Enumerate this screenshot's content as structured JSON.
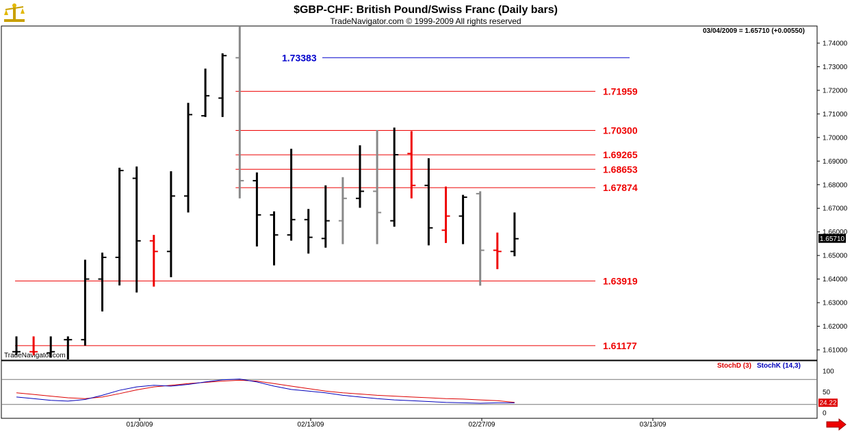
{
  "header": {
    "title": "$GBP-CHF:  British Pound/Swiss Franc  (Daily bars)",
    "copyright": "TradeNavigator.com © 1999-2009 All rights reserved",
    "readout": "03/04/2009 = 1.65710 (+0.00550)",
    "watermark": "TradeNavigator.com",
    "logo_icon": "scales-icon"
  },
  "chart_data": [
    {
      "type": "ohlc",
      "title": "$GBP-CHF:  British Pound/Swiss Franc  (Daily bars)",
      "ylim": [
        1.605,
        1.748
      ],
      "y_ticks": [
        "1.74000",
        "1.73000",
        "1.72000",
        "1.71000",
        "1.70000",
        "1.69000",
        "1.68000",
        "1.67000",
        "1.66000",
        "1.65000",
        "1.64000",
        "1.63000",
        "1.62000",
        "1.61000"
      ],
      "x_ticks": [
        "01/30/09",
        "02/13/09",
        "02/27/09",
        "03/13/09"
      ],
      "last_price_label": "1.65710",
      "bars": [
        {
          "h": 1.6157,
          "l": 1.6077,
          "o": 1.6092,
          "c": 1.6092,
          "color": "black"
        },
        {
          "h": 1.6157,
          "l": 1.6077,
          "o": 1.6092,
          "c": 1.6092,
          "color": "red"
        },
        {
          "h": 1.6157,
          "l": 1.6067,
          "o": 1.6087,
          "c": 1.6092,
          "color": "black"
        },
        {
          "h": 1.6157,
          "l": 1.6057,
          "o": 1.6143,
          "c": 1.6143,
          "color": "black"
        },
        {
          "h": 1.6482,
          "l": 1.6118,
          "o": 1.6143,
          "c": 1.64,
          "color": "black"
        },
        {
          "h": 1.6512,
          "l": 1.6263,
          "o": 1.64,
          "c": 1.6492,
          "color": "black"
        },
        {
          "h": 1.6872,
          "l": 1.6373,
          "o": 1.6492,
          "c": 1.686,
          "color": "black"
        },
        {
          "h": 1.6877,
          "l": 1.6343,
          "o": 1.6827,
          "c": 1.6562,
          "color": "black"
        },
        {
          "h": 1.6587,
          "l": 1.6368,
          "o": 1.6562,
          "c": 1.6517,
          "color": "red"
        },
        {
          "h": 1.6857,
          "l": 1.6408,
          "o": 1.6517,
          "c": 1.6752,
          "color": "black"
        },
        {
          "h": 1.7147,
          "l": 1.6682,
          "o": 1.6752,
          "c": 1.7097,
          "color": "black"
        },
        {
          "h": 1.7292,
          "l": 1.7087,
          "o": 1.7092,
          "c": 1.7177,
          "color": "black"
        },
        {
          "h": 1.7357,
          "l": 1.7087,
          "o": 1.7167,
          "c": 1.7347,
          "color": "black"
        },
        {
          "h": 1.7478,
          "l": 1.6742,
          "o": 1.7338,
          "c": 1.6817,
          "color": "gray"
        },
        {
          "h": 1.6852,
          "l": 1.6538,
          "o": 1.6817,
          "c": 1.6672,
          "color": "black"
        },
        {
          "h": 1.6687,
          "l": 1.6458,
          "o": 1.6672,
          "c": 1.6587,
          "color": "black"
        },
        {
          "h": 1.6952,
          "l": 1.6563,
          "o": 1.6587,
          "c": 1.6652,
          "color": "black"
        },
        {
          "h": 1.6697,
          "l": 1.6508,
          "o": 1.6652,
          "c": 1.6577,
          "color": "black"
        },
        {
          "h": 1.6797,
          "l": 1.6533,
          "o": 1.6572,
          "c": 1.6647,
          "color": "black"
        },
        {
          "h": 1.6832,
          "l": 1.6548,
          "o": 1.6647,
          "c": 1.6742,
          "color": "gray"
        },
        {
          "h": 1.6967,
          "l": 1.6702,
          "o": 1.6742,
          "c": 1.6772,
          "color": "black"
        },
        {
          "h": 1.7032,
          "l": 1.6548,
          "o": 1.6772,
          "c": 1.6682,
          "color": "gray"
        },
        {
          "h": 1.7042,
          "l": 1.6622,
          "o": 1.6647,
          "c": 1.6927,
          "color": "black"
        },
        {
          "h": 1.7027,
          "l": 1.6742,
          "o": 1.6932,
          "c": 1.6797,
          "color": "red"
        },
        {
          "h": 1.6912,
          "l": 1.6543,
          "o": 1.6797,
          "c": 1.6617,
          "color": "black"
        },
        {
          "h": 1.6792,
          "l": 1.6553,
          "o": 1.6607,
          "c": 1.6667,
          "color": "red"
        },
        {
          "h": 1.6757,
          "l": 1.6548,
          "o": 1.6667,
          "c": 1.6747,
          "color": "black"
        },
        {
          "h": 1.6772,
          "l": 1.6372,
          "o": 1.6762,
          "c": 1.6522,
          "color": "gray"
        },
        {
          "h": 1.6597,
          "l": 1.6442,
          "o": 1.6522,
          "c": 1.6517,
          "color": "red"
        },
        {
          "h": 1.6682,
          "l": 1.6497,
          "o": 1.6517,
          "c": 1.6571,
          "color": "black"
        }
      ],
      "levels": [
        {
          "value": 1.73383,
          "label": "1.73383",
          "color": "#0000cc",
          "x_start_bar": 18,
          "x_end_bar": 36
        },
        {
          "value": 1.71959,
          "label": "1.71959",
          "color": "#ee0000",
          "x_start_bar": 13,
          "x_end_bar": 33
        },
        {
          "value": 1.703,
          "label": "1.70300",
          "color": "#ee0000",
          "x_start_bar": 13,
          "x_end_bar": 33
        },
        {
          "value": 1.69265,
          "label": "1.69265",
          "color": "#ee0000",
          "x_start_bar": 13,
          "x_end_bar": 33
        },
        {
          "value": 1.68653,
          "label": "1.68653",
          "color": "#ee0000",
          "x_start_bar": 13,
          "x_end_bar": 33
        },
        {
          "value": 1.67874,
          "label": "1.67874",
          "color": "#ee0000",
          "x_start_bar": 13,
          "x_end_bar": 33
        },
        {
          "value": 1.63919,
          "label": "1.63919",
          "color": "#ee0000",
          "x_start_bar": 0,
          "x_end_bar": 33
        },
        {
          "value": 1.61177,
          "label": "1.61177",
          "color": "#ee0000",
          "x_start_bar": 0,
          "x_end_bar": 33
        }
      ]
    },
    {
      "type": "line",
      "ylim": [
        0,
        100
      ],
      "y_ticks": [
        "100",
        "50",
        "0"
      ],
      "last_value_label": "24.22",
      "hlines": [
        80,
        20
      ],
      "series": [
        {
          "name": "StochD (3)",
          "color": "#dd0000",
          "values": [
            48,
            44,
            40,
            36,
            34,
            38,
            46,
            55,
            62,
            66,
            70,
            73,
            76,
            78,
            76,
            70,
            64,
            58,
            52,
            48,
            45,
            42,
            40,
            38,
            36,
            34,
            33,
            31,
            29,
            25
          ]
        },
        {
          "name": "StochK (14,3)",
          "color": "#0000bb",
          "values": [
            38,
            34,
            30,
            28,
            32,
            42,
            54,
            62,
            66,
            64,
            68,
            74,
            79,
            81,
            74,
            64,
            56,
            52,
            48,
            42,
            38,
            34,
            31,
            29,
            27,
            25,
            24,
            23,
            24,
            24
          ]
        }
      ]
    }
  ],
  "colors": {
    "black_bar": "#000000",
    "red_bar": "#ee0000",
    "gray_bar": "#888888",
    "price_tag_bg": "#000000",
    "stoch_tag_bg": "#dd0000",
    "arrow": "#ee0000"
  }
}
